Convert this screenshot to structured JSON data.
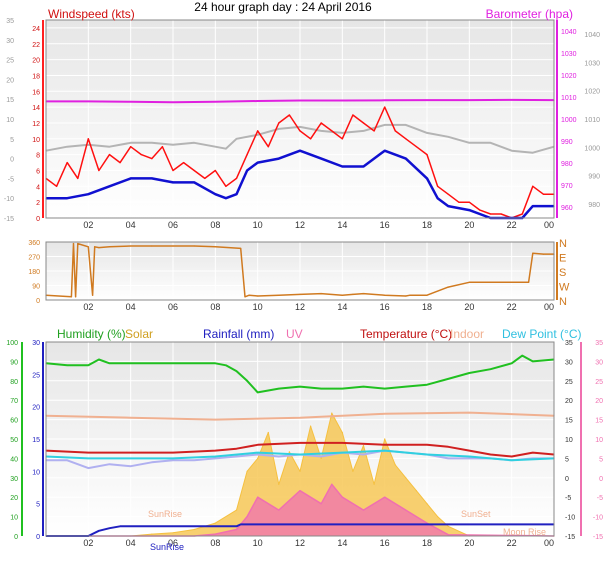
{
  "title": "24 hour graph day : 24 April 2016",
  "colors": {
    "wind_avg": "#1010d0",
    "wind_gust": "#ff1010",
    "baro": "#e020e0",
    "temp_top": "#b4b4b4",
    "dir": "#d07a20",
    "humidity": "#20c020",
    "solar": "#f5c040",
    "rain": "#2020c0",
    "uv": "#f070b0",
    "temperature": "#d02020",
    "indoor": "#f0b090",
    "dew": "#30d0e0",
    "plot_bg_top": "#e6e6e6",
    "plot_bg_bottom": "#ffffff"
  },
  "x_ticks": [
    "02",
    "04",
    "06",
    "08",
    "10",
    "12",
    "14",
    "16",
    "18",
    "20",
    "22",
    "00"
  ],
  "chart_data": [
    {
      "type": "line",
      "title": "24 hour graph day : 24 April 2016",
      "x_range": [
        0,
        24
      ],
      "left_axis": {
        "label": "Windspeed (kts)",
        "range": [
          -15,
          35
        ],
        "ticks": [
          -15,
          -10,
          -5,
          0,
          5,
          10,
          15,
          20,
          25,
          30,
          35
        ]
      },
      "inner_left_axis": {
        "range": [
          0,
          25
        ],
        "ticks": [
          0,
          2,
          4,
          6,
          8,
          10,
          12,
          14,
          16,
          18,
          20,
          22,
          24
        ]
      },
      "right_axis": {
        "label": "Barometer (hpa)",
        "range": [
          975,
          1045
        ],
        "ticks": [
          980,
          990,
          1000,
          1010,
          1020,
          1030,
          1040
        ]
      },
      "inner_right_axis": {
        "range": [
          955,
          1045
        ],
        "ticks": [
          960,
          970,
          980,
          990,
          1000,
          1010,
          1020,
          1030,
          1040
        ]
      },
      "series": [
        {
          "name": "Barometer (hpa)",
          "axis": "inner_right",
          "x": [
            0,
            2,
            4,
            6,
            8,
            10,
            12,
            14,
            16,
            18,
            20,
            22,
            24
          ],
          "y": [
            1008.0,
            1008.0,
            1007.8,
            1007.6,
            1007.8,
            1008.2,
            1008.4,
            1008.4,
            1008.5,
            1008.6,
            1008.6,
            1008.7,
            1008.6
          ]
        },
        {
          "name": "",
          "axis": "left",
          "x": [
            0,
            1,
            2,
            3,
            4,
            5,
            6,
            7,
            8,
            8.5,
            9,
            10,
            11,
            12,
            13,
            14,
            15,
            16,
            17,
            18,
            19,
            20,
            21,
            22,
            23,
            24
          ],
          "y": [
            2,
            3,
            3.5,
            3,
            4,
            4,
            3.5,
            4,
            3,
            2.5,
            5,
            6,
            7.5,
            8,
            7,
            6.5,
            7,
            8.5,
            8.5,
            6.5,
            5.5,
            4,
            4,
            2,
            1.5,
            3
          ]
        },
        {
          "name": "Windspeed (kts)",
          "axis": "inner_left",
          "x": [
            0,
            1,
            2,
            3,
            4,
            5,
            6,
            7,
            8,
            8.5,
            9,
            9.5,
            10,
            11,
            12,
            13,
            14,
            15,
            16,
            17,
            18,
            18.5,
            19,
            20,
            21,
            22,
            22.5,
            23,
            24
          ],
          "y": [
            2.5,
            2.5,
            3,
            4,
            5,
            5,
            4.5,
            4.5,
            3,
            2.5,
            3,
            6,
            7,
            7.5,
            8.5,
            7.5,
            6.5,
            6.5,
            8.5,
            7.5,
            5,
            2.5,
            1.5,
            1,
            0,
            0,
            0,
            1.5,
            1.5
          ]
        },
        {
          "name": "Gust",
          "axis": "inner_left",
          "x": [
            0,
            0.5,
            1,
            1.5,
            2,
            2.5,
            3,
            3.5,
            4,
            4.5,
            5,
            5.5,
            6,
            6.5,
            7,
            7.5,
            8,
            8.5,
            9,
            9.5,
            10,
            10.5,
            11,
            11.5,
            12,
            12.5,
            13,
            13.5,
            14,
            14.5,
            15,
            15.5,
            16,
            16.5,
            17,
            17.5,
            18,
            18.5,
            19,
            19.5,
            20,
            20.5,
            21,
            21.5,
            22,
            22.5,
            23,
            23.5,
            24
          ],
          "y": [
            5,
            4,
            7,
            5,
            10,
            6,
            8,
            7,
            9,
            8,
            7.5,
            9,
            6,
            7,
            6,
            5,
            6,
            4,
            5,
            8,
            11,
            9,
            12,
            13,
            11,
            10,
            12,
            11,
            10,
            13,
            12,
            11,
            14,
            11,
            10,
            9,
            8,
            4,
            3,
            2,
            2,
            1,
            0.5,
            0.5,
            0,
            0.5,
            4,
            3,
            3
          ]
        }
      ]
    },
    {
      "type": "line",
      "x_range": [
        0,
        24
      ],
      "left_axis": {
        "range": [
          0,
          360
        ],
        "ticks": [
          0,
          90,
          180,
          270,
          360
        ]
      },
      "right_axis": {
        "ticks": [
          "N",
          "W",
          "S",
          "E",
          "N"
        ]
      },
      "series": [
        {
          "name": "Wind direction",
          "x": [
            0,
            1.2,
            1.3,
            1.4,
            1.5,
            2,
            2.2,
            2.3,
            2.5,
            3,
            4,
            5,
            6,
            7,
            8,
            9.2,
            9.4,
            9.6,
            10,
            11,
            12,
            13,
            14,
            14.5,
            15,
            16,
            17,
            17.2,
            18,
            18.2,
            19,
            20,
            21,
            22,
            22.8,
            23,
            23.5,
            24
          ],
          "y": [
            30,
            20,
            350,
            20,
            350,
            330,
            30,
            330,
            325,
            330,
            335,
            335,
            335,
            335,
            330,
            320,
            20,
            30,
            25,
            30,
            35,
            40,
            30,
            35,
            40,
            30,
            25,
            30,
            30,
            40,
            80,
            110,
            110,
            110,
            110,
            290,
            285,
            285
          ]
        }
      ]
    },
    {
      "type": "line",
      "x_range": [
        0,
        24
      ],
      "left_axis": {
        "label": "Humidity (%)",
        "range": [
          0,
          100
        ],
        "ticks": [
          0,
          10,
          20,
          30,
          40,
          50,
          60,
          70,
          80,
          90,
          100
        ]
      },
      "inner_left_axis": {
        "label": "Rainfall (mm)",
        "range": [
          0,
          30
        ],
        "ticks": [
          0,
          5,
          10,
          15,
          20,
          25,
          30
        ]
      },
      "right_axis": {
        "label": "Dew Point (°C)",
        "range": [
          -15,
          35
        ],
        "ticks": [
          -15,
          -10,
          -5,
          0,
          5,
          10,
          15,
          20,
          25,
          30,
          35
        ]
      },
      "outer_right_axis": {
        "range": [
          -15,
          35
        ],
        "ticks": [
          -15,
          -10,
          -5,
          0,
          5,
          10,
          15,
          20,
          25,
          30,
          35
        ]
      },
      "legend": [
        "Humidity (%)",
        "Solar",
        "Rainfall (mm)",
        "UV",
        "Temperature (°C)",
        "Indoor",
        "Dew Point (°C)"
      ],
      "annotations": [
        "SunRise",
        "SunSet",
        "SunRise",
        "Moon Rise"
      ],
      "series": [
        {
          "name": "Humidity (%)",
          "axis": "left",
          "x": [
            0,
            1,
            2,
            2.5,
            3,
            4,
            5,
            6,
            7,
            8,
            8.5,
            9,
            9.5,
            10,
            11,
            12,
            13,
            14,
            15,
            16,
            17,
            18,
            19,
            20,
            21,
            22,
            22.5,
            23,
            24
          ],
          "y": [
            89,
            88,
            88,
            91,
            89,
            89,
            89,
            89,
            89,
            89,
            88,
            85,
            80,
            74,
            76,
            77,
            76,
            76,
            77,
            76,
            77,
            78,
            81,
            84,
            86,
            89,
            93,
            90,
            91
          ]
        },
        {
          "name": "Solar",
          "axis": "inner_left",
          "x": [
            0,
            3,
            4,
            5,
            6,
            7,
            8,
            9,
            9.5,
            10,
            10.5,
            11,
            11.5,
            12,
            12.5,
            13,
            13.5,
            14,
            14.5,
            15,
            15.5,
            16,
            16.5,
            17,
            17.5,
            18,
            18.5,
            19,
            20,
            24
          ],
          "y": [
            0,
            0,
            0,
            0.3,
            0.5,
            1,
            2,
            4,
            10,
            12,
            16,
            8,
            13,
            10,
            17,
            12,
            19,
            16,
            10,
            14,
            8,
            15,
            11,
            9,
            7,
            5,
            3,
            1.5,
            0,
            0
          ]
        },
        {
          "name": "Rainfall (mm)",
          "axis": "inner_left",
          "x": [
            0,
            2,
            2.5,
            3,
            3.5,
            9,
            9.2,
            24
          ],
          "y": [
            0,
            0,
            0.8,
            1.2,
            1.5,
            1.5,
            1.8,
            1.8
          ]
        },
        {
          "name": "UV",
          "axis": "inner_left",
          "x": [
            0,
            7,
            8,
            9,
            9.5,
            10,
            11,
            12,
            13,
            13.5,
            14,
            15,
            16,
            17,
            18,
            19,
            24
          ],
          "y": [
            0,
            0,
            0.3,
            1,
            3,
            6,
            4,
            7,
            5,
            8,
            6,
            4,
            6,
            4,
            2,
            0.2,
            0
          ]
        },
        {
          "name": "Temperature (°C)",
          "axis": "right",
          "x": [
            0,
            2,
            4,
            6,
            8,
            9,
            10,
            12,
            14,
            16,
            17,
            18,
            19,
            20,
            21,
            22,
            23,
            24
          ],
          "y": [
            7,
            6.5,
            6.5,
            6.5,
            7,
            7.5,
            8.5,
            9,
            9,
            8.5,
            8.5,
            8.5,
            8,
            7,
            6,
            5.5,
            6.5,
            6
          ]
        },
        {
          "name": "Indoor",
          "axis": "right",
          "x": [
            0,
            4,
            8,
            12,
            16,
            20,
            24
          ],
          "y": [
            16,
            15.5,
            15,
            15.5,
            16.5,
            16.8,
            16
          ]
        },
        {
          "name": "Dew Point (°C)",
          "axis": "right",
          "x": [
            0,
            2,
            4,
            6,
            8,
            10,
            12,
            14,
            16,
            18,
            20,
            22,
            24
          ],
          "y": [
            5.5,
            5,
            5,
            5,
            5.5,
            6.5,
            6,
            6.5,
            7,
            6,
            5.5,
            4.5,
            5
          ]
        },
        {
          "name": "",
          "axis": "right",
          "x": [
            0,
            1,
            2,
            3,
            4,
            5,
            6,
            7,
            8,
            9,
            10,
            11,
            12,
            13,
            14,
            15,
            16,
            17,
            18,
            19,
            20,
            21,
            22,
            23,
            24
          ],
          "y": [
            4.5,
            4.5,
            2.5,
            3.5,
            3,
            4,
            4.5,
            4.5,
            5,
            5.5,
            6,
            5.5,
            6,
            5.5,
            6.5,
            6,
            7,
            6.5,
            6,
            5,
            5,
            5,
            4.5,
            5,
            5
          ]
        }
      ]
    }
  ]
}
